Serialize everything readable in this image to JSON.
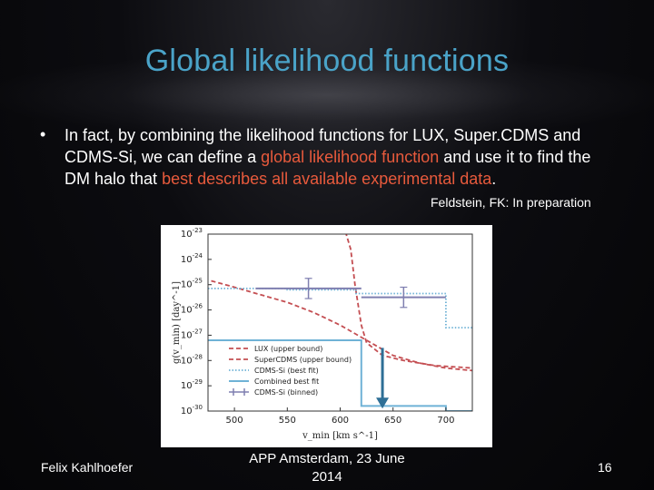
{
  "slide": {
    "title": "Global likelihood functions",
    "bullet": {
      "part1": "In fact, by combining the likelihood functions for LUX, Super.CDMS and CDMS-Si, we can define a ",
      "highlight1": "global likelihood function",
      "part2": " and use it to find the DM halo that ",
      "highlight2": "best describes all available experimental data",
      "part3": "."
    },
    "citation": "Feldstein, FK: In preparation",
    "footer": {
      "author": "Felix Kahlhoefer",
      "event": "APP Amsterdam, 23 June 2014",
      "page": "16"
    },
    "colors": {
      "title": "#4aa3c8",
      "highlight": "#e85a3c"
    }
  },
  "chart_data": {
    "type": "line",
    "xlabel": "v_min [km s^-1]",
    "ylabel": "g(v_min) [day^-1]",
    "x_ticks": [
      500,
      550,
      600,
      650,
      700
    ],
    "y_ticks": [
      "10^-23",
      "10^-24",
      "10^-25",
      "10^-26",
      "10^-27",
      "10^-28",
      "10^-29",
      "10^-30"
    ],
    "xlim": [
      475,
      725
    ],
    "ylim_log10": [
      -30,
      -23
    ],
    "arrow": {
      "x": 640,
      "y_from_log10": -27.5,
      "y_to_log10": -29.9
    },
    "series": [
      {
        "name": "LUX (upper bound)",
        "style": "dashed",
        "color": "#c44e52",
        "x": [
          478,
          500,
          525,
          550,
          575,
          600,
          625,
          650,
          675,
          700,
          725
        ],
        "y_log10": [
          -24.85,
          -25.1,
          -25.4,
          -25.7,
          -26.1,
          -26.6,
          -27.2,
          -27.8,
          -28.1,
          -28.3,
          -28.4
        ]
      },
      {
        "name": "SuperCDMS (upper bound)",
        "style": "dashed",
        "color": "#c44e52",
        "x": [
          605,
          610,
          612,
          614,
          617,
          620,
          625,
          640,
          660,
          690,
          725
        ],
        "y_log10": [
          -22.9,
          -23.6,
          -24.3,
          -25.0,
          -25.8,
          -26.6,
          -27.3,
          -27.8,
          -28.0,
          -28.2,
          -28.3
        ]
      },
      {
        "name": "CDMS-Si (best fit)",
        "style": "dotted",
        "color": "#6fb2d6",
        "x": [
          475,
          550,
          550,
          615,
          615,
          700,
          700,
          725
        ],
        "y_log10": [
          -25.15,
          -25.15,
          -25.2,
          -25.2,
          -25.35,
          -25.35,
          -26.7,
          -26.7
        ]
      },
      {
        "name": "Combined best fit",
        "style": "solid",
        "color": "#6fb2d6",
        "x": [
          475,
          620,
          620,
          700,
          700,
          725
        ],
        "y_log10": [
          -27.2,
          -27.2,
          -29.8,
          -29.8,
          -30.0,
          -30.0
        ]
      }
    ],
    "binned": {
      "name": "CDMS-Si (binned)",
      "color": "#7f7fb0",
      "points": [
        {
          "x": 570,
          "x_low": 520,
          "x_high": 620,
          "y_log10": -25.15,
          "y_err": 0.4
        },
        {
          "x": 660,
          "x_low": 620,
          "x_high": 700,
          "y_log10": -25.5,
          "y_err": 0.4
        }
      ]
    }
  }
}
